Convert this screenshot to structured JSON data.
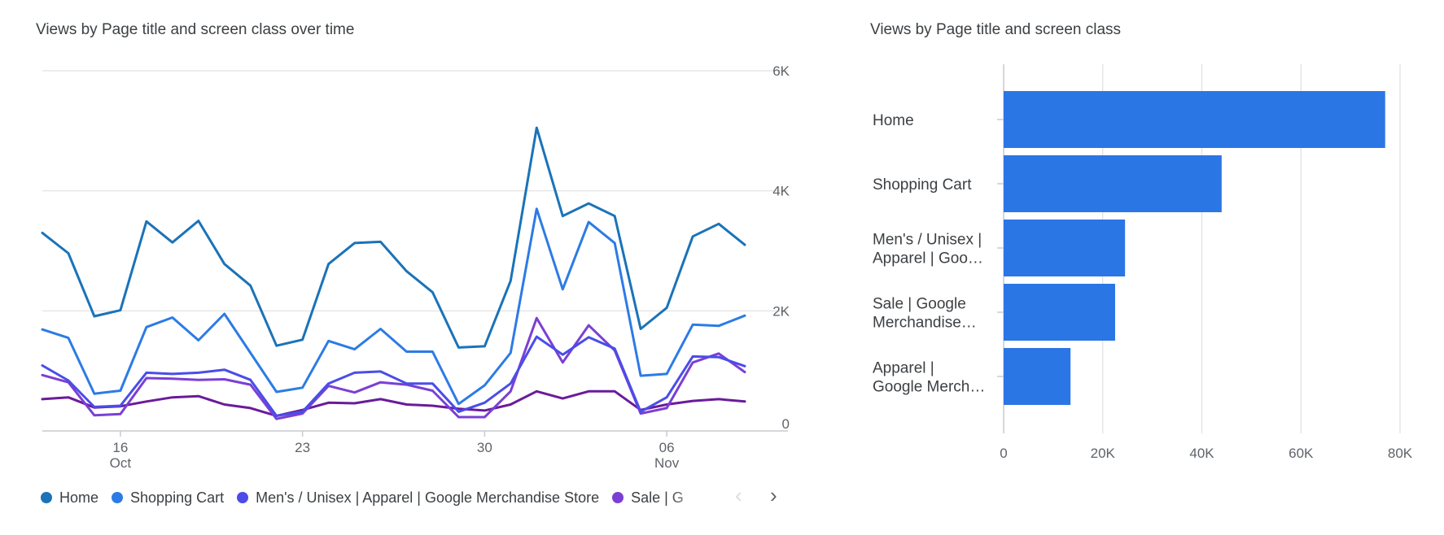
{
  "line_card": {
    "title": "Views by Page title and screen class over time",
    "legend_prev_icon": "chevron-left-icon",
    "legend_next_icon": "chevron-right-icon",
    "legend_prev_glyph": "‹",
    "legend_next_glyph": "›"
  },
  "bar_card": {
    "title": "Views by Page title and screen class"
  },
  "chart_data": [
    {
      "type": "line",
      "title": "Views by Page title and screen class over time",
      "x": [
        "Oct 13",
        "Oct 14",
        "Oct 15",
        "Oct 16",
        "Oct 17",
        "Oct 18",
        "Oct 19",
        "Oct 20",
        "Oct 21",
        "Oct 22",
        "Oct 23",
        "Oct 24",
        "Oct 25",
        "Oct 26",
        "Oct 27",
        "Oct 28",
        "Oct 29",
        "Oct 30",
        "Oct 31",
        "Nov 1",
        "Nov 2",
        "Nov 3",
        "Nov 4",
        "Nov 5",
        "Nov 6",
        "Nov 7",
        "Nov 8",
        "Nov 9"
      ],
      "x_ticks": [
        {
          "label": "16",
          "sublabel": "Oct",
          "index": 3
        },
        {
          "label": "23",
          "sublabel": "",
          "index": 10
        },
        {
          "label": "30",
          "sublabel": "",
          "index": 17
        },
        {
          "label": "06",
          "sublabel": "Nov",
          "index": 24
        }
      ],
      "y_ticks": [
        {
          "label": "0",
          "value": 0
        },
        {
          "label": "2K",
          "value": 2000
        },
        {
          "label": "4K",
          "value": 4000
        },
        {
          "label": "6K",
          "value": 6000
        }
      ],
      "ylim": [
        0,
        6000
      ],
      "y_axis_side": "right",
      "grid": true,
      "legend_position": "bottom",
      "series": [
        {
          "name": "Home",
          "color": "#1a73b8",
          "values": [
            3300,
            2960,
            1910,
            2010,
            3490,
            3140,
            3500,
            2780,
            2420,
            1420,
            1520,
            2780,
            3130,
            3150,
            2660,
            2310,
            1390,
            1410,
            2500,
            5050,
            3580,
            3790,
            3580,
            1700,
            2050,
            3240,
            3450,
            3100
          ]
        },
        {
          "name": "Shopping Cart",
          "color": "#2c7be5",
          "values": [
            1690,
            1550,
            620,
            670,
            1730,
            1890,
            1510,
            1950,
            1300,
            650,
            720,
            1500,
            1360,
            1700,
            1320,
            1320,
            450,
            760,
            1300,
            3700,
            2360,
            3480,
            3130,
            920,
            950,
            1770,
            1750,
            1920
          ]
        },
        {
          "name": "Men's / Unisex | Apparel | Google Merchandise Store",
          "color": "#4a4de8",
          "values": [
            1090,
            840,
            400,
            420,
            970,
            950,
            970,
            1020,
            850,
            250,
            320,
            790,
            970,
            990,
            790,
            790,
            320,
            470,
            790,
            1570,
            1270,
            1560,
            1370,
            320,
            560,
            1240,
            1230,
            1080
          ]
        },
        {
          "name": "Sale | Google Merchandise Store",
          "color": "#7b3fd4",
          "values": [
            930,
            810,
            260,
            280,
            880,
            870,
            850,
            860,
            770,
            200,
            290,
            750,
            640,
            810,
            770,
            670,
            230,
            230,
            660,
            1880,
            1140,
            1760,
            1340,
            290,
            380,
            1140,
            1290,
            980
          ]
        },
        {
          "name": "Apparel | Google Merchandise Store",
          "color": "#6a1b9a",
          "values": [
            530,
            560,
            390,
            410,
            490,
            560,
            580,
            440,
            380,
            250,
            350,
            470,
            460,
            530,
            440,
            420,
            370,
            340,
            440,
            660,
            540,
            660,
            660,
            350,
            440,
            500,
            530,
            490
          ]
        }
      ],
      "legend_visible": [
        "Home",
        "Shopping Cart",
        "Men's / Unisex | Apparel | Google Merchandise Store",
        "Sale | G"
      ]
    },
    {
      "type": "bar",
      "orientation": "horizontal",
      "title": "Views by Page title and screen class",
      "categories": [
        "Home",
        "Shopping Cart",
        "Men's / Unisex | Apparel | Goo…",
        "Sale | Google Merchandise…",
        "Apparel | Google Merch…"
      ],
      "category_lines": [
        [
          "Home"
        ],
        [
          "Shopping Cart"
        ],
        [
          "Men's / Unisex |",
          "Apparel | Goo…"
        ],
        [
          "Sale | Google",
          "Merchandise…"
        ],
        [
          "Apparel |",
          "Google Merch…"
        ]
      ],
      "values": [
        77000,
        44000,
        24500,
        22500,
        13500
      ],
      "color": "#2b76e5",
      "xlim": [
        0,
        80000
      ],
      "x_ticks": [
        {
          "label": "0",
          "value": 0
        },
        {
          "label": "20K",
          "value": 20000
        },
        {
          "label": "40K",
          "value": 40000
        },
        {
          "label": "60K",
          "value": 60000
        },
        {
          "label": "80K",
          "value": 80000
        }
      ],
      "grid": true
    }
  ]
}
